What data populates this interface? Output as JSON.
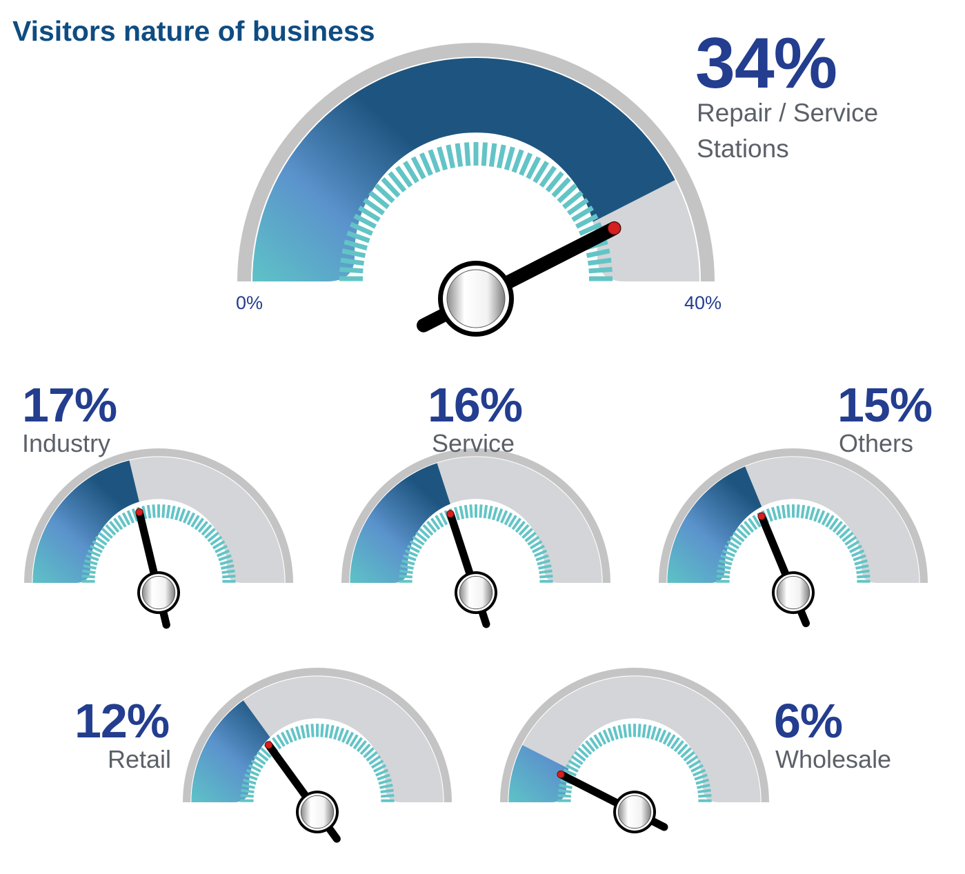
{
  "chart_data": {
    "type": "gauge",
    "title": "Visitors nature of business",
    "scale": {
      "min_label": "0%",
      "max_label": "40%",
      "min": 0,
      "max": 40
    },
    "gauges": [
      {
        "name": "Repair / Service Stations",
        "value": 34,
        "value_label": "34%"
      },
      {
        "name": "Industry",
        "value": 17,
        "value_label": "17%"
      },
      {
        "name": "Service",
        "value": 16,
        "value_label": "16%"
      },
      {
        "name": "Others",
        "value": 15,
        "value_label": "15%"
      },
      {
        "name": "Retail",
        "value": 12,
        "value_label": "12%"
      },
      {
        "name": "Wholesale",
        "value": 6,
        "value_label": "6%"
      }
    ]
  },
  "colors": {
    "title": "#0f4c81",
    "value_text": "#233d8f",
    "label_text": "#5b6068",
    "fill_dark": "#1e5580",
    "fill_mid": "#5b93cc",
    "fill_light": "#5ec7c6",
    "track": "#d4d5d8",
    "rim": "#c4c4c4",
    "ticks": "#63c4c6",
    "needle": "#000000",
    "needle_tip": "#d42020"
  }
}
